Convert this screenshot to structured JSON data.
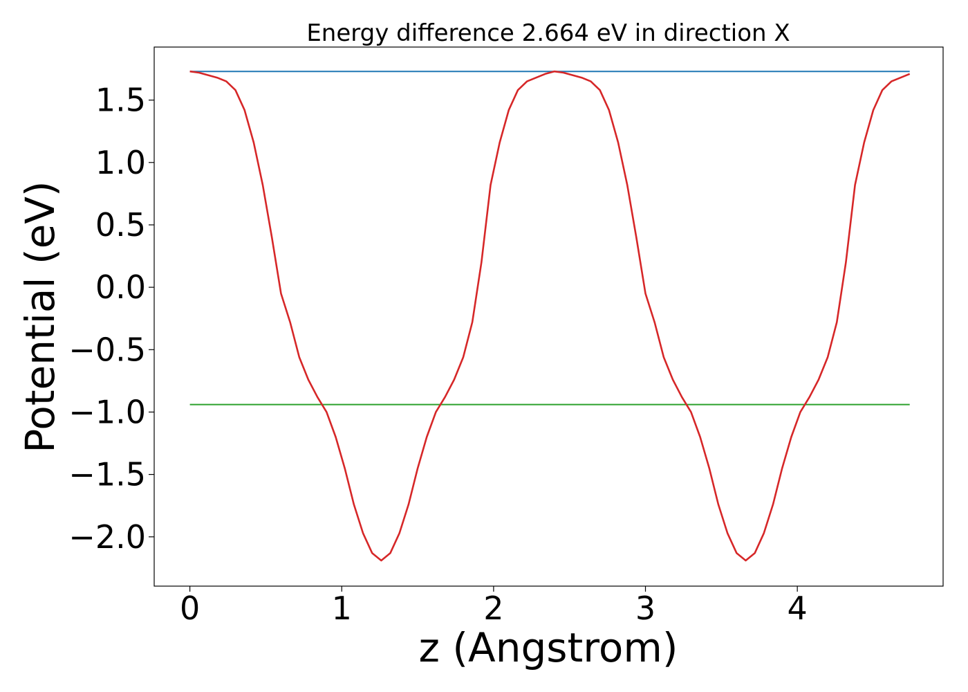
{
  "chart_data": {
    "type": "line",
    "title": "Energy difference 2.664 eV in direction X",
    "xlabel": "z (Angstrom)",
    "ylabel": "Potential (eV)",
    "xlim": [
      -0.235,
      4.96
    ],
    "ylim": [
      -2.395,
      1.925
    ],
    "xticks": [
      0,
      1,
      2,
      3,
      4
    ],
    "xtick_labels": [
      "0",
      "1",
      "2",
      "3",
      "4"
    ],
    "yticks": [
      1.5,
      1.0,
      0.5,
      0.0,
      -0.5,
      -1.0,
      -1.5,
      -2.0
    ],
    "ytick_labels": [
      "1.5",
      "1.0",
      "0.5",
      "0.0",
      "−0.5",
      "−1.0",
      "−1.5",
      "−2.0"
    ],
    "grid": false,
    "series": [
      {
        "color": "#d62728",
        "x": [
          0,
          0.06,
          0.12,
          0.18,
          0.24,
          0.3,
          0.36,
          0.42,
          0.48,
          0.54,
          0.6,
          0.66,
          0.72,
          0.78,
          0.84,
          0.9,
          0.96,
          1.02,
          1.08,
          1.14,
          1.2,
          1.26,
          1.32,
          1.38,
          1.44,
          1.5,
          1.56,
          1.62,
          1.68,
          1.74,
          1.8,
          1.86,
          1.92,
          1.98,
          2.04,
          2.1,
          2.16,
          2.22,
          2.28,
          2.34,
          2.4,
          2.46,
          2.52,
          2.58,
          2.64,
          2.7,
          2.76,
          2.82,
          2.88,
          2.94,
          3.0,
          3.06,
          3.12,
          3.18,
          3.24,
          3.3,
          3.36,
          3.42,
          3.48,
          3.54,
          3.6,
          3.66,
          3.72,
          3.78,
          3.84,
          3.9,
          3.96,
          4.02,
          4.08,
          4.14,
          4.2,
          4.26,
          4.32,
          4.38,
          4.44,
          4.5,
          4.56,
          4.62,
          4.68,
          4.74
        ],
        "values": [
          1.73,
          1.72,
          1.7,
          1.68,
          1.65,
          1.58,
          1.42,
          1.16,
          0.82,
          0.4,
          -0.05,
          -0.28,
          -0.56,
          -0.74,
          -0.88,
          -1.0,
          -1.2,
          -1.45,
          -1.74,
          -1.97,
          -2.13,
          -2.19,
          -2.13,
          -1.97,
          -1.74,
          -1.45,
          -1.2,
          -1.0,
          -0.88,
          -0.74,
          -0.56,
          -0.28,
          0.2,
          0.82,
          1.16,
          1.42,
          1.58,
          1.65,
          1.68,
          1.71,
          1.73,
          1.72,
          1.7,
          1.68,
          1.65,
          1.58,
          1.42,
          1.16,
          0.82,
          0.4,
          -0.05,
          -0.28,
          -0.56,
          -0.74,
          -0.88,
          -1.0,
          -1.2,
          -1.45,
          -1.74,
          -1.97,
          -2.13,
          -2.19,
          -2.13,
          -1.97,
          -1.74,
          -1.45,
          -1.2,
          -1.0,
          -0.88,
          -0.74,
          -0.56,
          -0.28,
          0.2,
          0.82,
          1.16,
          1.42,
          1.58,
          1.65,
          1.68,
          1.71
        ]
      },
      {
        "color": "#1f77b4",
        "x": [
          0,
          4.74
        ],
        "values": [
          1.73,
          1.73
        ]
      },
      {
        "color": "#2ca02c",
        "x": [
          0,
          4.74
        ],
        "values": [
          -0.94,
          -0.94
        ]
      }
    ]
  }
}
